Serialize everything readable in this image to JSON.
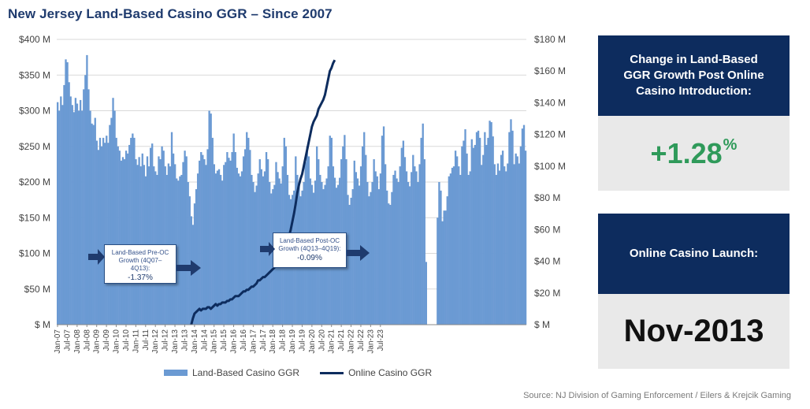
{
  "title": "New Jersey Land-Based Casino GGR – Since 2007",
  "chart_data": {
    "type": "bar",
    "left_axis": {
      "ticks": [
        "$400 M",
        "$350 M",
        "$300 M",
        "$250 M",
        "$200 M",
        "$150 M",
        "$100 M",
        "$50 M",
        "$ M"
      ],
      "ylim": [
        0,
        400
      ]
    },
    "right_axis": {
      "ticks": [
        "$180 M",
        "$160 M",
        "$140 M",
        "$120 M",
        "$100 M",
        "$80 M",
        "$60 M",
        "$40 M",
        "$20 M",
        "$ M"
      ],
      "ylim": [
        0,
        180
      ]
    },
    "x_tick_labels": [
      "Jan-07",
      "Jul-07",
      "Jan-08",
      "Jul-08",
      "Jan-09",
      "Jul-09",
      "Jan-10",
      "Jul-10",
      "Jan-11",
      "Jul-11",
      "Jan-12",
      "Jul-12",
      "Jan-13",
      "Jul-13",
      "Jan-14",
      "Jul-14",
      "Jan-15",
      "Jul-15",
      "Jan-16",
      "Jul-16",
      "Jan-17",
      "Jul-17",
      "Jan-18",
      "Jul-18",
      "Jan-19",
      "Jul-19",
      "Jan-20",
      "Jul-20",
      "Jan-21",
      "Jul-21",
      "Jan-22",
      "Jul-22",
      "Jan-23",
      "Jul-23"
    ],
    "series": [
      {
        "name": "Land-Based Casino GGR",
        "type": "bar",
        "axis": "left",
        "start": "Jan-07",
        "values": [
          312,
          300,
          320,
          308,
          336,
          372,
          368,
          340,
          320,
          308,
          298,
          318,
          310,
          300,
          315,
          300,
          330,
          350,
          378,
          330,
          300,
          282,
          280,
          290,
          258,
          245,
          262,
          250,
          262,
          255,
          265,
          255,
          280,
          290,
          318,
          300,
          262,
          250,
          244,
          230,
          235,
          232,
          244,
          240,
          252,
          262,
          268,
          262,
          232,
          224,
          235,
          222,
          240,
          224,
          208,
          236,
          222,
          248,
          254,
          222,
          215,
          210,
          236,
          232,
          250,
          244,
          222,
          210,
          226,
          222,
          270,
          240,
          225,
          205,
          202,
          208,
          210,
          228,
          244,
          236,
          200,
          180,
          152,
          140,
          170,
          190,
          212,
          230,
          242,
          238,
          232,
          224,
          246,
          300,
          296,
          262,
          225,
          212,
          216,
          218,
          210,
          202,
          224,
          228,
          242,
          234,
          230,
          242,
          268,
          242,
          220,
          212,
          208,
          215,
          236,
          246,
          270,
          262,
          245,
          210,
          200,
          186,
          195,
          212,
          232,
          218,
          208,
          215,
          242,
          232,
          200,
          184,
          190,
          196,
          228,
          214,
          205,
          198,
          222,
          262,
          250,
          210,
          182,
          176,
          182,
          188,
          236,
          210,
          198,
          180,
          188,
          200,
          228,
          250,
          236,
          205,
          196,
          185,
          202,
          250,
          232,
          210,
          200,
          190,
          196,
          205,
          222,
          265,
          262,
          222,
          206,
          192,
          196,
          206,
          232,
          250,
          266,
          232,
          182,
          168,
          178,
          190,
          230,
          214,
          205,
          195,
          222,
          250,
          270,
          238,
          200,
          180,
          186,
          200,
          232,
          215,
          208,
          190,
          212,
          265,
          278,
          225,
          188,
          170,
          168,
          186,
          210,
          216,
          205,
          200,
          222,
          248,
          258,
          235,
          215,
          200,
          194,
          214,
          238,
          222,
          215,
          200,
          225,
          262,
          282,
          232,
          88,
          0,
          0,
          0,
          0,
          0,
          0,
          150,
          200,
          188,
          145,
          160,
          160,
          180,
          208,
          212,
          220,
          222,
          244,
          236,
          222,
          210,
          250,
          258,
          274,
          240,
          210,
          215,
          260,
          248,
          252,
          270,
          272,
          262,
          224,
          238,
          270,
          252,
          262,
          286,
          284,
          264,
          225,
          210,
          226,
          216,
          238,
          244,
          222,
          215,
          226,
          270,
          288,
          272,
          225,
          240,
          236,
          226,
          250,
          275,
          280,
          244
        ]
      },
      {
        "name": "Online Casino GGR",
        "type": "line",
        "axis": "right",
        "start": "Nov-13",
        "values": [
          0,
          4,
          7,
          8,
          9,
          10,
          9,
          10,
          10,
          10,
          11,
          11,
          10,
          11,
          12,
          13,
          12,
          13,
          13,
          14,
          14,
          14,
          15,
          15,
          16,
          16,
          17,
          18,
          18,
          18,
          19,
          20,
          21,
          21,
          22,
          22,
          23,
          24,
          24,
          25,
          26,
          28,
          28,
          29,
          30,
          30,
          31,
          32,
          33,
          34,
          35,
          36,
          37,
          39,
          41,
          43,
          45,
          47,
          50,
          53,
          56,
          60,
          65,
          70,
          76,
          83,
          88,
          92,
          95,
          100,
          105,
          110,
          115,
          120,
          125,
          128,
          130,
          132,
          136,
          138,
          140,
          142,
          145,
          150,
          155,
          160,
          162,
          165,
          167
        ]
      }
    ],
    "legend": [
      "Land-Based Casino GGR",
      "Online Casino GGR"
    ],
    "legend_position": "bottom"
  },
  "callouts": [
    {
      "title": "Land-Based Pre-OC Growth (4Q07–4Q13):",
      "value": "-1.37%"
    },
    {
      "title": "Land-Based Post-OC Growth (4Q13–4Q19):",
      "value": "-0.09%"
    }
  ],
  "panels": [
    {
      "header": "Change in Land-Based GGR Growth Post Online Casino Introduction:",
      "value": "+1.28",
      "suffix": "%"
    },
    {
      "header": "Online Casino Launch:",
      "value": "Nov-2013"
    }
  ],
  "source": "Source: NJ Division of Gaming Enforcement / Eilers & Krejcik Gaming",
  "colors": {
    "bar": "#6b9ad3",
    "line": "#0d2c5e",
    "panel_header": "#0d2c5e",
    "panel_body": "#e9e9e9",
    "positive": "#2f9a5a",
    "title": "#1f3b6e"
  }
}
